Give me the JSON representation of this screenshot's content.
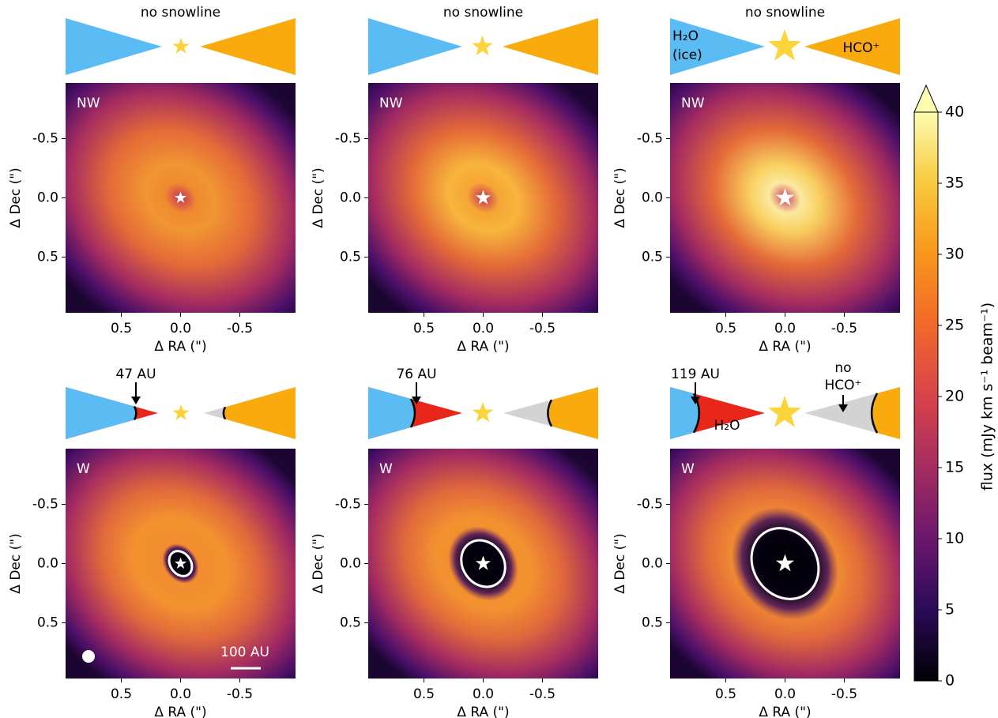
{
  "chart_data": [
    {
      "type": "heatmap",
      "panel_label": "NW",
      "header": "no snowline",
      "xlabel": "Δ RA (\")",
      "ylabel": "Δ Dec (\")",
      "xlim": [
        0.97,
        -0.97
      ],
      "ylim": [
        -0.97,
        0.97
      ],
      "xticks": [
        0.5,
        {
          "value": 0,
          "label": "0.0"
        },
        -0.5
      ],
      "yticks": [
        -0.5,
        {
          "value": 0,
          "label": "0.0"
        },
        0.5
      ]
    },
    {
      "type": "heatmap",
      "panel_label": "NW",
      "header": "no snowline",
      "xlabel": "Δ RA (\")",
      "ylabel": "Δ Dec (\")",
      "xlim": [
        0.97,
        -0.97
      ],
      "ylim": [
        -0.97,
        0.97
      ],
      "xticks": [
        0.5,
        {
          "value": 0,
          "label": "0.0"
        },
        -0.5
      ],
      "yticks": [
        -0.5,
        {
          "value": 0,
          "label": "0.0"
        },
        0.5
      ]
    },
    {
      "type": "heatmap",
      "panel_label": "NW",
      "header": "no snowline",
      "left_labels": [
        "H₂O",
        "(ice)"
      ],
      "right_labels": [
        "HCO⁺"
      ],
      "xlabel": "Δ RA (\")",
      "ylabel": "Δ Dec (\")",
      "xlim": [
        0.97,
        -0.97
      ],
      "ylim": [
        -0.97,
        0.97
      ],
      "xticks": [
        0.5,
        {
          "value": 0,
          "label": "0.0"
        },
        -0.5
      ],
      "yticks": [
        -0.5,
        {
          "value": 0,
          "label": "0.0"
        },
        0.5
      ]
    },
    {
      "type": "heatmap",
      "panel_label": "W",
      "snowline_label": "47 AU",
      "scale_bar": "100 AU",
      "xlabel": "Δ RA (\")",
      "ylabel": "Δ Dec (\")",
      "xlim": [
        0.97,
        -0.97
      ],
      "ylim": [
        -0.97,
        0.97
      ],
      "xticks": [
        0.5,
        {
          "value": 0,
          "label": "0.0"
        },
        -0.5
      ],
      "yticks": [
        -0.5,
        {
          "value": 0,
          "label": "0.0"
        },
        0.5
      ]
    },
    {
      "type": "heatmap",
      "panel_label": "W",
      "snowline_label": "76 AU",
      "xlabel": "Δ RA (\")",
      "ylabel": "Δ Dec (\")",
      "xlim": [
        0.97,
        -0.97
      ],
      "ylim": [
        -0.97,
        0.97
      ],
      "xticks": [
        0.5,
        {
          "value": 0,
          "label": "0.0"
        },
        -0.5
      ],
      "yticks": [
        -0.5,
        {
          "value": 0,
          "label": "0.0"
        },
        0.5
      ]
    },
    {
      "type": "heatmap",
      "panel_label": "W",
      "snowline_label": "119 AU",
      "left_labels": [
        "H₂O"
      ],
      "right_labels": [
        "no",
        "HCO⁺"
      ],
      "xlabel": "Δ RA (\")",
      "ylabel": "Δ Dec (\")",
      "xlim": [
        0.97,
        -0.97
      ],
      "ylim": [
        -0.97,
        0.97
      ],
      "xticks": [
        0.5,
        {
          "value": 0,
          "label": "0.0"
        },
        -0.5
      ],
      "yticks": [
        -0.5,
        {
          "value": 0,
          "label": "0.0"
        },
        0.5
      ]
    }
  ],
  "colorbar": {
    "label": "flux (mJy km s⁻¹ beam⁻¹)",
    "lim": [
      0,
      40
    ],
    "ticks": [
      0,
      5,
      10,
      15,
      20,
      25,
      30,
      35,
      40
    ]
  }
}
